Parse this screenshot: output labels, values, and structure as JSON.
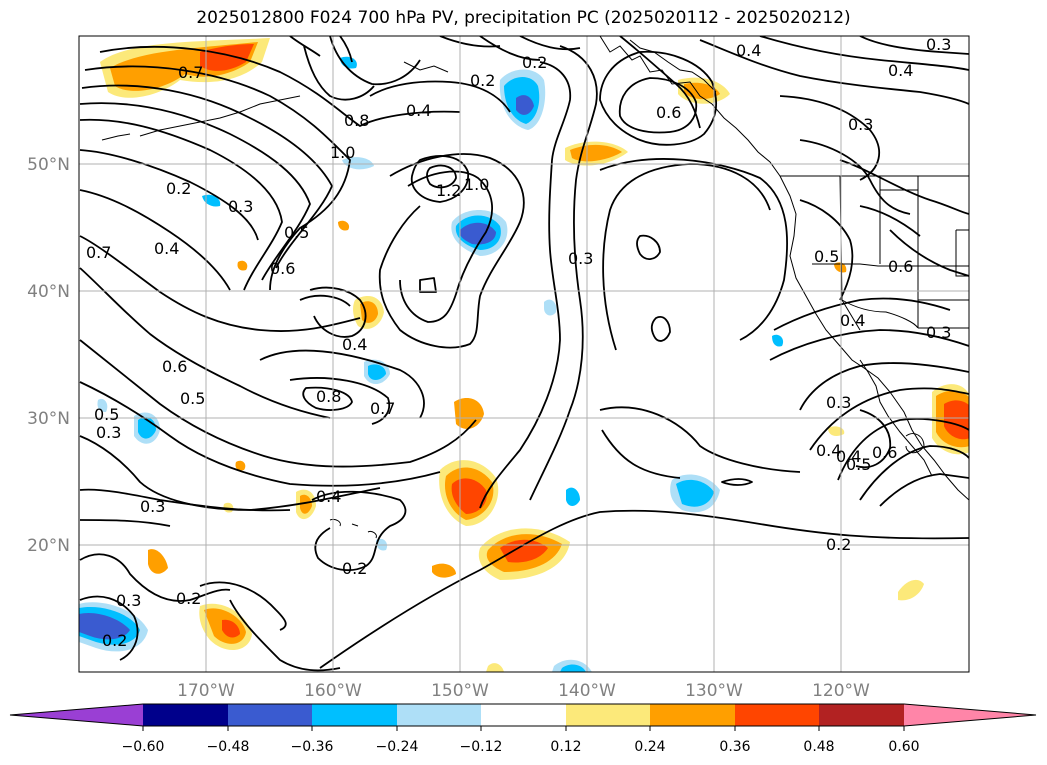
{
  "title": "2025012800 F024 700 hPa PV, precipitation PC (2025020112 - 2025020212)",
  "lat_labels": [
    "50°N",
    "40°N",
    "30°N",
    "20°N"
  ],
  "lon_labels": [
    "170°W",
    "160°W",
    "150°W",
    "140°W",
    "130°W",
    "120°W"
  ],
  "contour_labels": [
    {
      "text": "0.7"
    },
    {
      "text": "0.2"
    },
    {
      "text": "0.4"
    },
    {
      "text": "0.8"
    },
    {
      "text": "1.0"
    },
    {
      "text": "1.2"
    },
    {
      "text": "1.0"
    },
    {
      "text": "0.2"
    },
    {
      "text": "0.4"
    },
    {
      "text": "0.3"
    },
    {
      "text": "0.4"
    },
    {
      "text": "0.3"
    },
    {
      "text": "0.6"
    },
    {
      "text": "0.2"
    },
    {
      "text": "0.3"
    },
    {
      "text": "0.5"
    },
    {
      "text": "0.6"
    },
    {
      "text": "0.7"
    },
    {
      "text": "0.4"
    },
    {
      "text": "0.3"
    },
    {
      "text": "0.4"
    },
    {
      "text": "0.6"
    },
    {
      "text": "0.5"
    },
    {
      "text": "0.8"
    },
    {
      "text": "0.7"
    },
    {
      "text": "0.5"
    },
    {
      "text": "0.3"
    },
    {
      "text": "0.4"
    },
    {
      "text": "0.2"
    },
    {
      "text": "0.3"
    },
    {
      "text": "0.2"
    },
    {
      "text": "0.2"
    },
    {
      "text": "0.5"
    },
    {
      "text": "0.6"
    },
    {
      "text": "0.4"
    },
    {
      "text": "0.4"
    },
    {
      "text": "0.3"
    },
    {
      "text": "0.3"
    },
    {
      "text": "0.4"
    },
    {
      "text": "0.5"
    },
    {
      "text": "0.6"
    },
    {
      "text": "0.2"
    },
    {
      "text": "0.3"
    }
  ],
  "colorbar": {
    "colors": [
      "#9a3fd4",
      "#00008b",
      "#3a5bd0",
      "#00bfff",
      "#aedff7",
      "#ffffff",
      "#fce97a",
      "#ff9f00",
      "#ff4500",
      "#b22222",
      "#ff85a8"
    ],
    "ticks": [
      "−0.60",
      "−0.48",
      "−0.36",
      "−0.24",
      "−0.12",
      "0.12",
      "0.24",
      "0.36",
      "0.48",
      "0.60"
    ]
  }
}
